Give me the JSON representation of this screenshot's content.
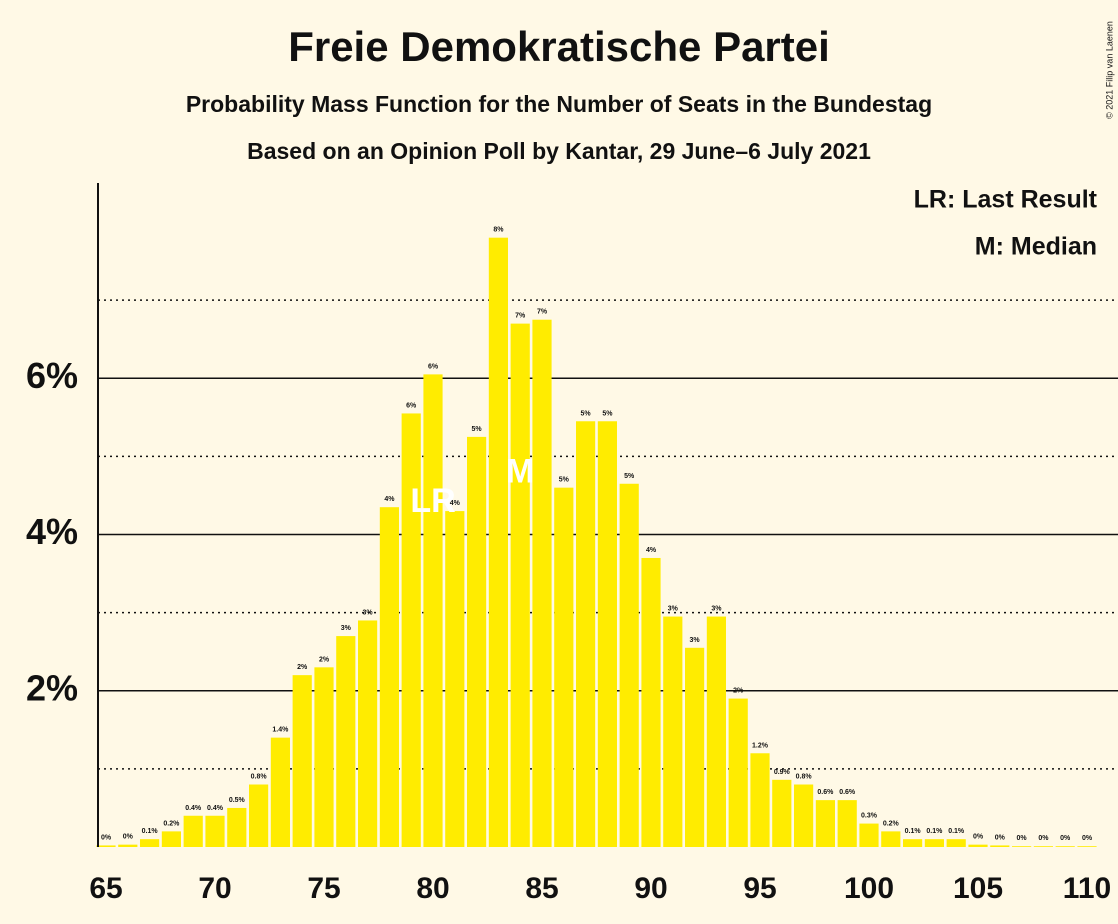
{
  "chart_data": {
    "type": "bar",
    "title": "Freie Demokratische Partei",
    "subtitle": "Probability Mass Function for the Number of Seats in the Bundestag",
    "subtitle2": "Based on an Opinion Poll by Kantar, 29 June–6 July 2021",
    "copyright": "© 2021 Filip van Laenen",
    "legend": [
      "LR: Last Result",
      "M: Median"
    ],
    "color": "#ffec00",
    "annotation_color": "#ffffff",
    "grid": true,
    "x": [
      65,
      66,
      67,
      68,
      69,
      70,
      71,
      72,
      73,
      74,
      75,
      76,
      77,
      78,
      79,
      80,
      81,
      82,
      83,
      84,
      85,
      86,
      87,
      88,
      89,
      90,
      91,
      92,
      93,
      94,
      95,
      96,
      97,
      98,
      99,
      100,
      101,
      102,
      103,
      104,
      105,
      106,
      107,
      108,
      109,
      110
    ],
    "values": [
      0.02,
      0.03,
      0.1,
      0.2,
      0.4,
      0.4,
      0.5,
      0.8,
      1.4,
      2.2,
      2.3,
      2.7,
      2.9,
      4.35,
      5.55,
      6.05,
      4.3,
      5.25,
      7.8,
      6.7,
      6.75,
      4.6,
      5.45,
      5.45,
      4.65,
      3.7,
      2.95,
      2.55,
      2.95,
      1.9,
      1.2,
      0.86,
      0.8,
      0.6,
      0.6,
      0.3,
      0.2,
      0.1,
      0.1,
      0.1,
      0.03,
      0.02,
      0.01,
      0.01,
      0.01,
      0.01
    ],
    "value_labels": [
      "0%",
      "0%",
      "0.1%",
      "0.2%",
      "0.4%",
      "0.4%",
      "0.5%",
      "0.8%",
      "1.4%",
      "2%",
      "2%",
      "3%",
      "3%",
      "4%",
      "6%",
      "6%",
      "4%",
      "5%",
      "8%",
      "7%",
      "7%",
      "5%",
      "5%",
      "5%",
      "5%",
      "4%",
      "3%",
      "3%",
      "3%",
      "2%",
      "1.2%",
      "0.9%",
      "0.8%",
      "0.6%",
      "0.6%",
      "0.3%",
      "0.2%",
      "0.1%",
      "0.1%",
      "0.1%",
      "0%",
      "0%",
      "0%",
      "0%",
      "0%",
      "0%"
    ],
    "annotations": [
      {
        "x": 80,
        "text": "LR"
      },
      {
        "x": 84,
        "text": "M"
      }
    ],
    "xlim": [
      65,
      110
    ],
    "xticks": [
      65,
      70,
      75,
      80,
      85,
      90,
      95,
      100,
      105,
      110
    ],
    "ylim": [
      0,
      8.5
    ],
    "yticks": [
      {
        "value": 2,
        "label": "2%"
      },
      {
        "value": 4,
        "label": "4%"
      },
      {
        "value": 6,
        "label": "6%"
      }
    ],
    "minor_yticks": [
      1,
      3,
      5,
      7
    ]
  }
}
